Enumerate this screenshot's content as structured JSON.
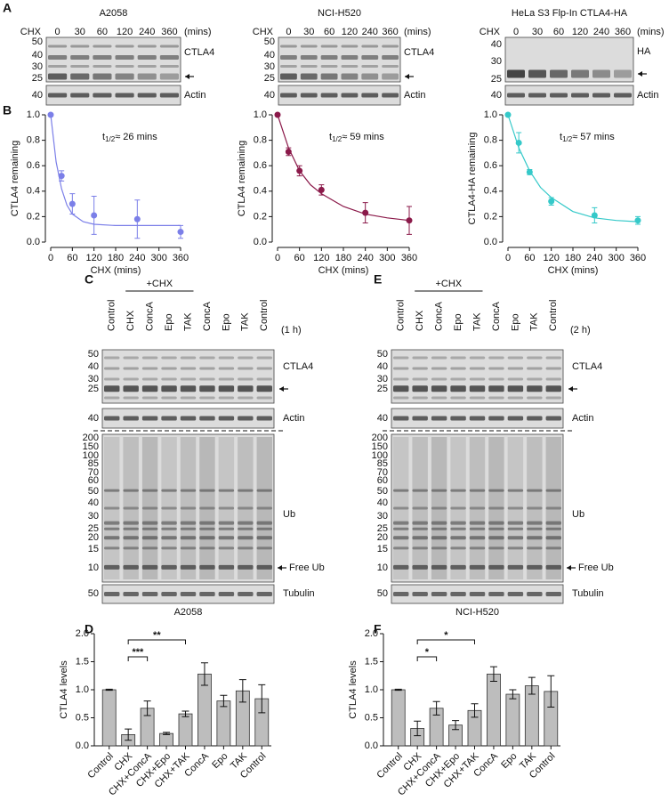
{
  "panel_labels": [
    "A",
    "B",
    "C",
    "D",
    "E",
    "F"
  ],
  "panel_a": [
    {
      "title": "A2058",
      "title_color": "#7b7fe8",
      "treatment": "CHX",
      "lanes": [
        "0",
        "30",
        "60",
        "120",
        "240",
        "360"
      ],
      "unit": "(mins)",
      "markers": [
        "50",
        "40",
        "30",
        "25"
      ],
      "target": "CTLA4",
      "loading": "Actin",
      "loading_marker": "40"
    },
    {
      "title": "NCI-H520",
      "title_color": "#8b1a4a",
      "treatment": "CHX",
      "lanes": [
        "0",
        "30",
        "60",
        "120",
        "240",
        "360"
      ],
      "unit": "(mins)",
      "markers": [
        "50",
        "40",
        "30",
        "25"
      ],
      "target": "CTLA4",
      "loading": "Actin",
      "loading_marker": "40"
    },
    {
      "title": "HeLa S3 Flp-In CTLA4-HA",
      "title_color": "#35c9c9",
      "treatment": "CHX",
      "lanes": [
        "0",
        "30",
        "60",
        "120",
        "240",
        "360"
      ],
      "unit": "(mins)",
      "markers": [
        "40",
        "30",
        "25"
      ],
      "target": "HA",
      "loading": "Actin",
      "loading_marker": "40"
    }
  ],
  "chart_data": [
    {
      "type": "line",
      "annotation": [
        "t",
        "1/2",
        "≈ 26 mins"
      ],
      "xlabel": "CHX (mins)",
      "ylabel": "CTLA4 remaining",
      "color": "#7b7fe8",
      "x": [
        0,
        30,
        60,
        120,
        240,
        360
      ],
      "values": [
        1.0,
        0.52,
        0.3,
        0.21,
        0.18,
        0.08
      ],
      "errors": [
        0,
        0.04,
        0.08,
        0.15,
        0.15,
        0.05
      ],
      "fit_x": [
        0,
        15,
        30,
        45,
        60,
        90,
        120,
        180,
        240,
        300,
        360
      ],
      "fit_values": [
        1.0,
        0.63,
        0.42,
        0.29,
        0.22,
        0.16,
        0.14,
        0.13,
        0.13,
        0.13,
        0.13
      ],
      "xlim": [
        0,
        360
      ],
      "ylim": [
        0,
        1
      ],
      "xticks": [
        0,
        60,
        120,
        180,
        240,
        300,
        360
      ],
      "yticks": [
        {
          "value": 0,
          "label": "0.0"
        },
        {
          "value": 0.2,
          "label": "0.2"
        },
        {
          "value": 0.4,
          "label": "0.4"
        },
        {
          "value": 0.6,
          "label": "0.6"
        },
        {
          "value": 0.8,
          "label": "0.8"
        },
        {
          "value": 1,
          "label": "1.0"
        }
      ]
    },
    {
      "type": "line",
      "annotation": [
        "t",
        "1/2",
        "≈ 59 mins"
      ],
      "xlabel": "CHX (mins)",
      "ylabel": "CTLA4 remaining",
      "color": "#8b1a4a",
      "x": [
        0,
        30,
        60,
        120,
        240,
        360
      ],
      "values": [
        1.0,
        0.71,
        0.56,
        0.41,
        0.23,
        0.17
      ],
      "errors": [
        0,
        0.03,
        0.04,
        0.04,
        0.08,
        0.11
      ],
      "fit_x": [
        0,
        30,
        60,
        90,
        120,
        180,
        240,
        300,
        360
      ],
      "fit_values": [
        1.0,
        0.74,
        0.56,
        0.45,
        0.38,
        0.28,
        0.22,
        0.19,
        0.17
      ],
      "xlim": [
        0,
        360
      ],
      "ylim": [
        0,
        1
      ],
      "xticks": [
        0,
        60,
        120,
        180,
        240,
        300,
        360
      ],
      "yticks": [
        {
          "value": 0,
          "label": "0.0"
        },
        {
          "value": 0.2,
          "label": "0.2"
        },
        {
          "value": 0.4,
          "label": "0.4"
        },
        {
          "value": 0.6,
          "label": "0.6"
        },
        {
          "value": 0.8,
          "label": "0.8"
        },
        {
          "value": 1,
          "label": "1.0"
        }
      ]
    },
    {
      "type": "line",
      "annotation": [
        "t",
        "1/2",
        "≈ 57 mins"
      ],
      "xlabel": "CHX (mins)",
      "ylabel": "CTLA4-HA remaining",
      "color": "#35c9c9",
      "x": [
        0,
        30,
        60,
        120,
        240,
        360
      ],
      "values": [
        1.0,
        0.78,
        0.55,
        0.32,
        0.21,
        0.17
      ],
      "errors": [
        0,
        0.08,
        0.02,
        0.03,
        0.06,
        0.03
      ],
      "fit_x": [
        0,
        30,
        60,
        90,
        120,
        180,
        240,
        300,
        360
      ],
      "fit_values": [
        1.0,
        0.74,
        0.56,
        0.43,
        0.35,
        0.24,
        0.19,
        0.17,
        0.16
      ],
      "xlim": [
        0,
        360
      ],
      "ylim": [
        0,
        1
      ],
      "xticks": [
        0,
        60,
        120,
        180,
        240,
        300,
        360
      ],
      "yticks": [
        {
          "value": 0,
          "label": "0.0"
        },
        {
          "value": 0.2,
          "label": "0.2"
        },
        {
          "value": 0.4,
          "label": "0.4"
        },
        {
          "value": 0.6,
          "label": "0.6"
        },
        {
          "value": 0.8,
          "label": "0.8"
        },
        {
          "value": 1,
          "label": "1.0"
        }
      ]
    },
    {
      "type": "bar",
      "ylabel": "CTLA4 levels",
      "color": "#bdbdbd",
      "categories": [
        "Control",
        "CHX",
        "CHX+ConcA",
        "CHX+Epo",
        "CHX+TAK",
        "ConcA",
        "Epo",
        "TAK",
        "Control"
      ],
      "values": [
        1.0,
        0.2,
        0.67,
        0.22,
        0.57,
        1.28,
        0.8,
        0.98,
        0.84
      ],
      "errors": [
        0.01,
        0.1,
        0.13,
        0.02,
        0.05,
        0.2,
        0.1,
        0.2,
        0.25
      ],
      "ylim": [
        0,
        2
      ],
      "yticks": [
        {
          "value": 0,
          "label": "0.0"
        },
        {
          "value": 0.5,
          "label": "0.5"
        },
        {
          "value": 1,
          "label": "1.0"
        },
        {
          "value": 1.5,
          "label": "1.5"
        },
        {
          "value": 2,
          "label": "2.0"
        }
      ],
      "significance": [
        "***",
        "**"
      ]
    },
    {
      "type": "bar",
      "ylabel": "CTLA4 levels",
      "color": "#bdbdbd",
      "categories": [
        "Control",
        "CHX",
        "CHX+ConcA",
        "CHX+Epo",
        "CHX+TAK",
        "ConcA",
        "Epo",
        "TAK",
        "Control"
      ],
      "values": [
        1.0,
        0.31,
        0.67,
        0.37,
        0.63,
        1.28,
        0.92,
        1.07,
        0.97
      ],
      "errors": [
        0.01,
        0.13,
        0.12,
        0.08,
        0.12,
        0.13,
        0.08,
        0.15,
        0.28
      ],
      "ylim": [
        0,
        2
      ],
      "yticks": [
        {
          "value": 0,
          "label": "0.0"
        },
        {
          "value": 0.5,
          "label": "0.5"
        },
        {
          "value": 1,
          "label": "1.0"
        },
        {
          "value": 1.5,
          "label": "1.5"
        },
        {
          "value": 2,
          "label": "2.0"
        }
      ],
      "significance": [
        "*",
        "*"
      ]
    }
  ],
  "panel_ce": [
    {
      "treatment": "+CHX",
      "lanes": [
        "Control",
        "CHX",
        "ConcA",
        "Epo",
        "TAK",
        "ConcA",
        "Epo",
        "TAK",
        "Control"
      ],
      "time": "(1 h)",
      "target_markers": [
        "50",
        "40",
        "30",
        "25"
      ],
      "target": "CTLA4",
      "loading": "Actin",
      "loading_marker": "40",
      "ub_markers": [
        "200",
        "150",
        "100",
        "85",
        "70",
        "60",
        "50",
        "40",
        "30",
        "25",
        "20",
        "15",
        "10"
      ],
      "ub": "Ub",
      "free_ub": "Free Ub",
      "tubulin": "Tubulin",
      "tubulin_marker": "50",
      "cell_line": "A2058",
      "cell_color": "#7b7fe8"
    },
    {
      "treatment": "+CHX",
      "lanes": [
        "Control",
        "CHX",
        "ConcA",
        "Epo",
        "TAK",
        "ConcA",
        "Epo",
        "TAK",
        "Control"
      ],
      "time": "(2 h)",
      "target_markers": [
        "50",
        "40",
        "30",
        "25"
      ],
      "target": "CTLA4",
      "loading": "Actin",
      "loading_marker": "40",
      "ub_markers": [
        "200",
        "150",
        "100",
        "85",
        "70",
        "60",
        "50",
        "40",
        "30",
        "25",
        "20",
        "15",
        "10"
      ],
      "ub": "Ub",
      "free_ub": "Free Ub",
      "tubulin": "Tubulin",
      "tubulin_marker": "50",
      "cell_line": "NCI-H520",
      "cell_color": "#8b1a4a"
    }
  ]
}
